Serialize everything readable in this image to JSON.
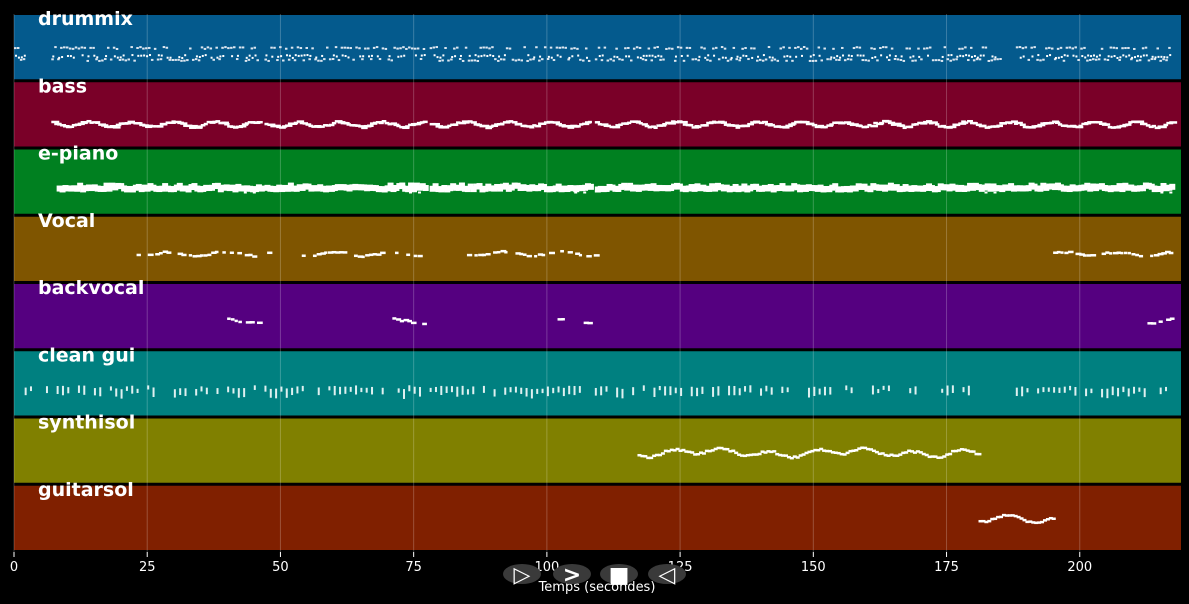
{
  "chart_data": {
    "type": "piano-roll",
    "xlabel": "Temps (secondes)",
    "xlim": [
      0,
      219
    ],
    "xticks": [
      0,
      25,
      50,
      75,
      100,
      125,
      150,
      175,
      200
    ],
    "grid": true,
    "background": "#000000",
    "tracks": [
      {
        "name": "drummix",
        "color": "#045a8d",
        "style": "dense",
        "segments": [
          [
            0,
            2
          ],
          [
            7,
            46
          ],
          [
            47,
            77
          ],
          [
            78,
            108
          ],
          [
            109,
            185
          ],
          [
            188,
            217
          ]
        ]
      },
      {
        "name": "bass",
        "color": "#7a0028",
        "style": "line",
        "segments": [
          [
            7,
            46
          ],
          [
            47,
            77
          ],
          [
            78,
            108
          ],
          [
            109,
            217
          ]
        ]
      },
      {
        "name": "e-piano",
        "color": "#008020",
        "style": "thick",
        "segments": [
          [
            8,
            46
          ],
          [
            47,
            77
          ],
          [
            78,
            108
          ],
          [
            109,
            217
          ]
        ],
        "clusters": [
          42,
          73,
          104,
          181,
          214
        ]
      },
      {
        "name": "Vocal",
        "color": "#7f5500",
        "style": "sparse",
        "segments": [
          [
            23,
            48
          ],
          [
            54,
            78
          ],
          [
            85,
            109
          ],
          [
            195,
            217
          ]
        ]
      },
      {
        "name": "backvocal",
        "color": "#550080",
        "style": "sparse",
        "segments": [
          [
            40,
            46
          ],
          [
            71,
            77
          ],
          [
            102,
            108
          ],
          [
            212,
            217
          ]
        ]
      },
      {
        "name": "clean gui",
        "color": "#008080",
        "style": "bars",
        "segments": [
          [
            1,
            46
          ],
          [
            47,
            77
          ],
          [
            78,
            108
          ],
          [
            109,
            180
          ],
          [
            188,
            217
          ]
        ]
      },
      {
        "name": "synthisol",
        "color": "#808000",
        "style": "melody",
        "segments": [
          [
            117,
            181
          ]
        ]
      },
      {
        "name": "guitarsol",
        "color": "#802000",
        "style": "melody",
        "segments": [
          [
            181,
            195
          ]
        ]
      }
    ]
  },
  "controls": [
    {
      "name": "play-button",
      "glyph": "▷"
    },
    {
      "name": "forward-button",
      "glyph": ">"
    },
    {
      "name": "stop-button",
      "glyph": "■"
    },
    {
      "name": "back-button",
      "glyph": "◁"
    }
  ]
}
